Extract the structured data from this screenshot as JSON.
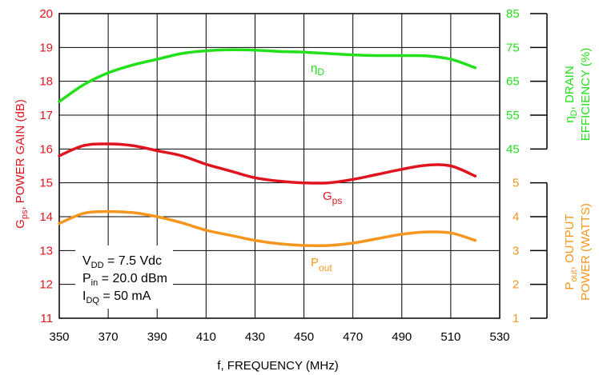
{
  "chart_data": {
    "type": "line",
    "colors": {
      "gps": "#e0141e",
      "eta": "#22e01a",
      "pout": "#f5961e"
    },
    "x_axis": {
      "label": "f, FREQUENCY (MHz)",
      "range": [
        350,
        530
      ],
      "ticks": [
        "350",
        "370",
        "390",
        "410",
        "430",
        "450",
        "470",
        "490",
        "510",
        "530"
      ]
    },
    "left_axis": {
      "label_main": "G",
      "label_sub": "ps",
      "label_rest": ", POWER GAIN (dB)",
      "range": [
        11,
        20
      ],
      "ticks": [
        "11",
        "12",
        "13",
        "14",
        "15",
        "16",
        "17",
        "18",
        "19",
        "20"
      ]
    },
    "right_axis_efficiency": {
      "label_line1_main": "η",
      "label_line1_sub": "D",
      "label_line1_rest": ", DRAIN",
      "label_line2": "EFFICIENCY (%)",
      "range": [
        45,
        85
      ],
      "ticks": [
        "45",
        "55",
        "65",
        "75",
        "85"
      ]
    },
    "right_axis_power": {
      "label_line1_main": "P",
      "label_line1_sub": "out",
      "label_line1_rest": ", OUTPUT",
      "label_line2": "POWER (WATTS)",
      "range": [
        1,
        5
      ],
      "ticks": [
        "1",
        "2",
        "3",
        "4",
        "5"
      ]
    },
    "series": [
      {
        "key": "gps",
        "label_main": "G",
        "label_sub": "ps",
        "axis": "left",
        "x": [
          350,
          360,
          370,
          380,
          390,
          400,
          410,
          420,
          430,
          440,
          450,
          460,
          470,
          480,
          490,
          500,
          510,
          520
        ],
        "y": [
          15.8,
          16.1,
          16.15,
          16.1,
          15.95,
          15.8,
          15.55,
          15.35,
          15.15,
          15.05,
          15.0,
          15.0,
          15.1,
          15.25,
          15.4,
          15.52,
          15.5,
          15.2
        ]
      },
      {
        "key": "eta",
        "label_main": "η",
        "label_sub": "D",
        "axis": "efficiency",
        "x": [
          350,
          360,
          370,
          380,
          390,
          400,
          410,
          420,
          430,
          440,
          450,
          460,
          470,
          480,
          490,
          500,
          510,
          520
        ],
        "y": [
          59,
          64,
          67.5,
          69.8,
          71.5,
          73.2,
          74,
          74.3,
          74.2,
          73.8,
          73.6,
          73.2,
          72.8,
          72.6,
          72.6,
          72.5,
          71.5,
          69.0
        ]
      },
      {
        "key": "pout",
        "label_main": "P",
        "label_sub": "out",
        "axis": "power",
        "x": [
          350,
          360,
          370,
          380,
          390,
          400,
          410,
          420,
          430,
          440,
          450,
          460,
          470,
          480,
          490,
          500,
          510,
          520
        ],
        "y": [
          3.8,
          4.1,
          4.15,
          4.12,
          4.0,
          3.82,
          3.6,
          3.45,
          3.3,
          3.2,
          3.15,
          3.15,
          3.22,
          3.35,
          3.48,
          3.55,
          3.52,
          3.3
        ]
      }
    ],
    "conditions": [
      {
        "main": "V",
        "sub": "DD",
        "rest": " = 7.5 Vdc"
      },
      {
        "main": "P",
        "sub": "in",
        "rest": " = 20.0 dBm"
      },
      {
        "main": "I",
        "sub": "DQ",
        "rest": " = 50 mA"
      }
    ],
    "grid": true
  }
}
